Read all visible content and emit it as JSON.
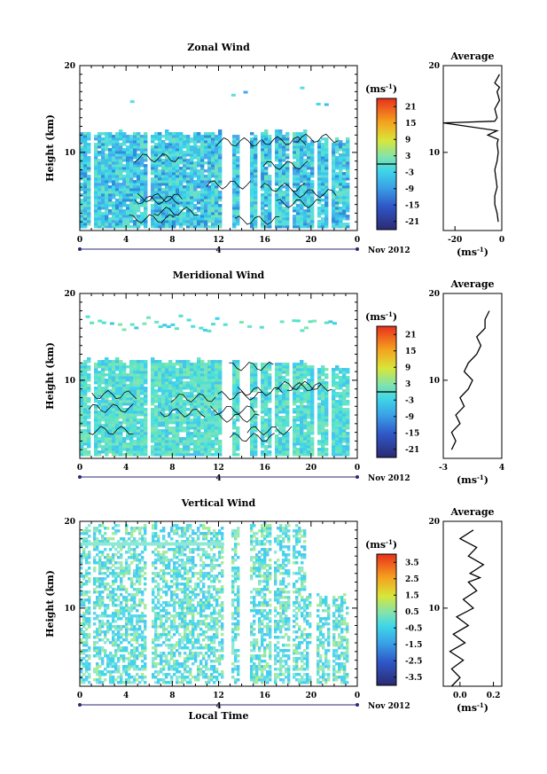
{
  "chart_data": [
    {
      "type": "heatmap",
      "title": "Zonal Wind",
      "ylabel": "Height (km)",
      "xticks": [
        "0",
        "4",
        "8",
        "12",
        "16",
        "20",
        "0"
      ],
      "yticks": [
        "10",
        "20"
      ],
      "xlim": [
        0,
        24
      ],
      "ylim": [
        1,
        20
      ],
      "day_marker": "4",
      "date_label": "Nov 2012",
      "colorbar": {
        "unit_base": "(ms",
        "unit_exp": "-1",
        "unit_close": ")",
        "ticks": [
          "21",
          "15",
          "9",
          "3",
          "-3",
          "-9",
          "-15",
          "-21"
        ],
        "range": [
          -24,
          24
        ],
        "zero_line": 0
      },
      "average": {
        "title": "Average",
        "xticks": [
          "-20",
          "0"
        ],
        "xlim": [
          -25,
          0
        ],
        "yticks": [
          "10",
          "20"
        ],
        "xlabel_base": "(ms",
        "xlabel_exp": "-1",
        "xlabel_close": ")",
        "profile": [
          [
            -1.5,
            2
          ],
          [
            -2,
            3
          ],
          [
            -3,
            4
          ],
          [
            -3,
            5
          ],
          [
            -2,
            6
          ],
          [
            -2.5,
            7
          ],
          [
            -3,
            8
          ],
          [
            -2,
            9
          ],
          [
            -1.5,
            10
          ],
          [
            -2,
            11
          ],
          [
            -1.5,
            11.5
          ],
          [
            -6,
            12
          ],
          [
            -2,
            12.5
          ],
          [
            -25,
            13.4
          ],
          [
            -3,
            13.6
          ],
          [
            -2,
            14
          ],
          [
            -3,
            15
          ],
          [
            -1,
            16
          ],
          [
            -2,
            17
          ],
          [
            -1,
            17.5
          ],
          [
            -3,
            18
          ],
          [
            -1,
            19
          ]
        ]
      }
    },
    {
      "type": "heatmap",
      "title": "Meridional Wind",
      "ylabel": "Height (km)",
      "xticks": [
        "0",
        "4",
        "8",
        "12",
        "16",
        "20",
        "0"
      ],
      "yticks": [
        "10",
        "20"
      ],
      "xlim": [
        0,
        24
      ],
      "ylim": [
        1,
        20
      ],
      "day_marker": "4",
      "date_label": "Nov 2012",
      "colorbar": {
        "unit_base": "(ms",
        "unit_exp": "-1",
        "unit_close": ")",
        "ticks": [
          "21",
          "15",
          "9",
          "3",
          "-3",
          "-9",
          "-15",
          "-21"
        ],
        "range": [
          -24,
          24
        ],
        "zero_line": 0
      },
      "average": {
        "title": "Average",
        "xticks": [
          "-3",
          "4"
        ],
        "xlim": [
          -3,
          4
        ],
        "yticks": [
          "10",
          "20"
        ],
        "xlabel_base": "(ms",
        "xlabel_exp": "-1",
        "xlabel_close": ")",
        "profile": [
          [
            -2,
            2
          ],
          [
            -1.5,
            3
          ],
          [
            -2,
            4
          ],
          [
            -1,
            5
          ],
          [
            -1.5,
            6
          ],
          [
            -0.5,
            7
          ],
          [
            -1,
            8
          ],
          [
            0,
            9
          ],
          [
            0.5,
            10
          ],
          [
            -0.5,
            11
          ],
          [
            0,
            12
          ],
          [
            1,
            13
          ],
          [
            1.5,
            14
          ],
          [
            1,
            15
          ],
          [
            2,
            16
          ],
          [
            2,
            17
          ],
          [
            2.5,
            18
          ]
        ]
      }
    },
    {
      "type": "heatmap",
      "title": "Vertical Wind",
      "ylabel": "Height (km)",
      "xlabel": "Local Time",
      "xticks": [
        "0",
        "4",
        "8",
        "12",
        "16",
        "20",
        "0"
      ],
      "yticks": [
        "10",
        "20"
      ],
      "xlim": [
        0,
        24
      ],
      "ylim": [
        1,
        20
      ],
      "day_marker": "4",
      "date_label": "Nov 2012",
      "colorbar": {
        "unit_base": "(ms",
        "unit_exp": "-1",
        "unit_close": ")",
        "ticks": [
          "3.5",
          "2.5",
          "1.5",
          "0.5",
          "-0.5",
          "-1.5",
          "-2.5",
          "-3.5"
        ],
        "range": [
          -4,
          4
        ]
      },
      "average": {
        "title": "Average",
        "xticks": [
          "0.0",
          "0.2"
        ],
        "xlim": [
          -0.1,
          0.25
        ],
        "yticks": [
          "10",
          "20"
        ],
        "xlabel_base": "(ms",
        "xlabel_exp": "-1",
        "xlabel_close": ")",
        "profile": [
          [
            -0.05,
            1
          ],
          [
            0.0,
            2
          ],
          [
            -0.05,
            3
          ],
          [
            0.02,
            4
          ],
          [
            -0.06,
            5
          ],
          [
            0.03,
            6
          ],
          [
            -0.04,
            7
          ],
          [
            0.05,
            8
          ],
          [
            -0.02,
            9
          ],
          [
            0.08,
            10
          ],
          [
            0.02,
            11
          ],
          [
            0.1,
            12
          ],
          [
            0.05,
            13
          ],
          [
            0.12,
            13.5
          ],
          [
            0.06,
            14
          ],
          [
            0.14,
            15
          ],
          [
            0.05,
            16
          ],
          [
            0.1,
            17
          ],
          [
            0.0,
            18
          ],
          [
            0.08,
            19
          ]
        ]
      }
    }
  ]
}
